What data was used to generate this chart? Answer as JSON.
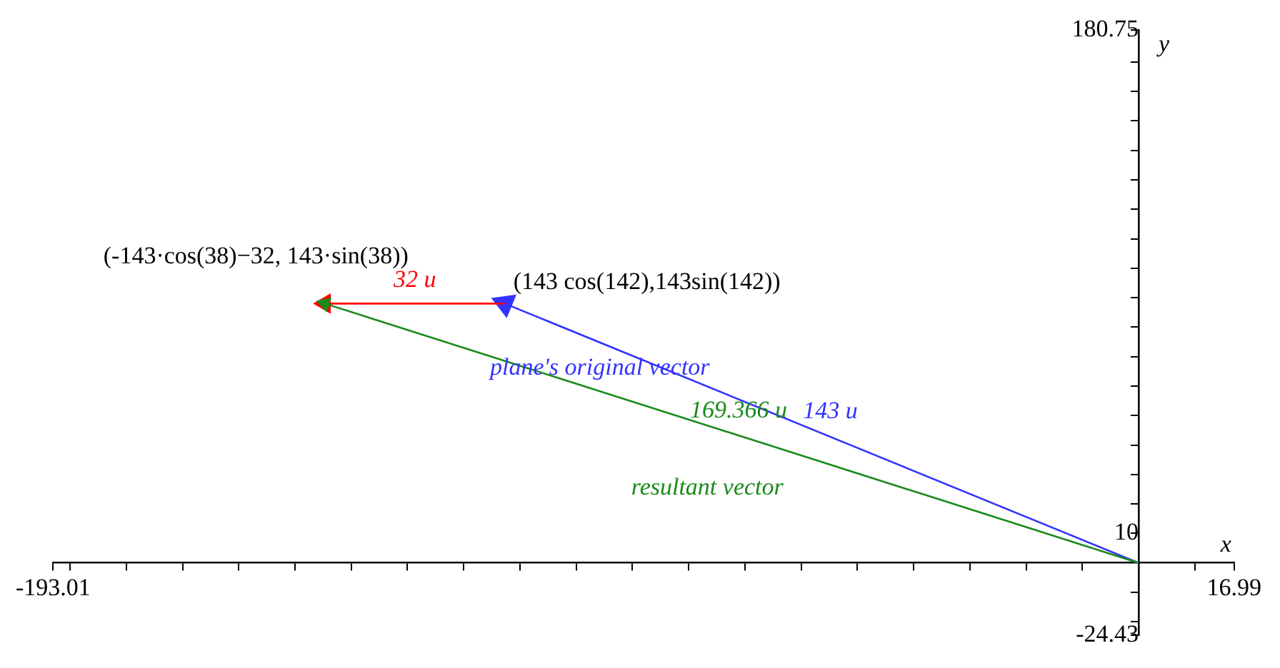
{
  "chart_data": {
    "type": "line",
    "xlabel": "x",
    "ylabel": "y",
    "xlim": [
      -193.01,
      16.99
    ],
    "ylim": [
      -24.43,
      180.75
    ],
    "xticks": [
      -193.01,
      {
        "value": -190,
        "label": null
      },
      {
        "value": -180,
        "label": null
      },
      {
        "value": -170,
        "label": null
      },
      {
        "value": -160,
        "label": null
      },
      {
        "value": -150,
        "label": null
      },
      {
        "value": -140,
        "label": null
      },
      {
        "value": -130,
        "label": null
      },
      {
        "value": -120,
        "label": null
      },
      {
        "value": -110,
        "label": null
      },
      {
        "value": -100,
        "label": null
      },
      {
        "value": -90,
        "label": null
      },
      {
        "value": -80,
        "label": null
      },
      {
        "value": -70,
        "label": null
      },
      {
        "value": -60,
        "label": null
      },
      {
        "value": -50,
        "label": null
      },
      {
        "value": -40,
        "label": null
      },
      {
        "value": -30,
        "label": null
      },
      {
        "value": -20,
        "label": null
      },
      {
        "value": -10,
        "label": null
      },
      {
        "value": 10,
        "label": null
      },
      16.99
    ],
    "yticks": [
      -24.43,
      {
        "value": -20,
        "label": null
      },
      {
        "value": -10,
        "label": null
      },
      10,
      {
        "value": 20,
        "label": null
      },
      {
        "value": 30,
        "label": null
      },
      {
        "value": 40,
        "label": null
      },
      {
        "value": 50,
        "label": null
      },
      {
        "value": 60,
        "label": null
      },
      {
        "value": 70,
        "label": null
      },
      {
        "value": 80,
        "label": null
      },
      {
        "value": 90,
        "label": null
      },
      {
        "value": 100,
        "label": null
      },
      {
        "value": 110,
        "label": null
      },
      {
        "value": 120,
        "label": null
      },
      {
        "value": 130,
        "label": null
      },
      {
        "value": 140,
        "label": null
      },
      {
        "value": 150,
        "label": null
      },
      {
        "value": 160,
        "label": null
      },
      {
        "value": 170,
        "label": null
      },
      180.75
    ],
    "grid": false,
    "legend": false,
    "marker": "triangle",
    "series": [
      {
        "name": "plane's original vector",
        "color": "#3333ff",
        "x": [
          0,
          -112.7
        ],
        "values": [
          0,
          88
        ]
      },
      {
        "color": "#ff0000",
        "x": [
          -112.7,
          -144.7
        ],
        "values": [
          88,
          88
        ]
      },
      {
        "name": "resultant vector",
        "color": "#1a8a1a",
        "x": [
          0,
          -144.7
        ],
        "values": [
          0,
          88
        ]
      }
    ],
    "annotations": [
      {
        "text": "(-143·cos(38)−32, 143·sin(38))",
        "x": -144.7,
        "y": 88
      },
      {
        "text": "(143 cos(142),143sin(142))",
        "x": -112.7,
        "y": 88
      },
      {
        "text": "32 u",
        "x": -128.7,
        "y": 88
      },
      {
        "text": "143 u",
        "x": -56.35,
        "y": 44
      },
      {
        "text": "169.366 u",
        "x": -72.35,
        "y": 44
      }
    ]
  }
}
